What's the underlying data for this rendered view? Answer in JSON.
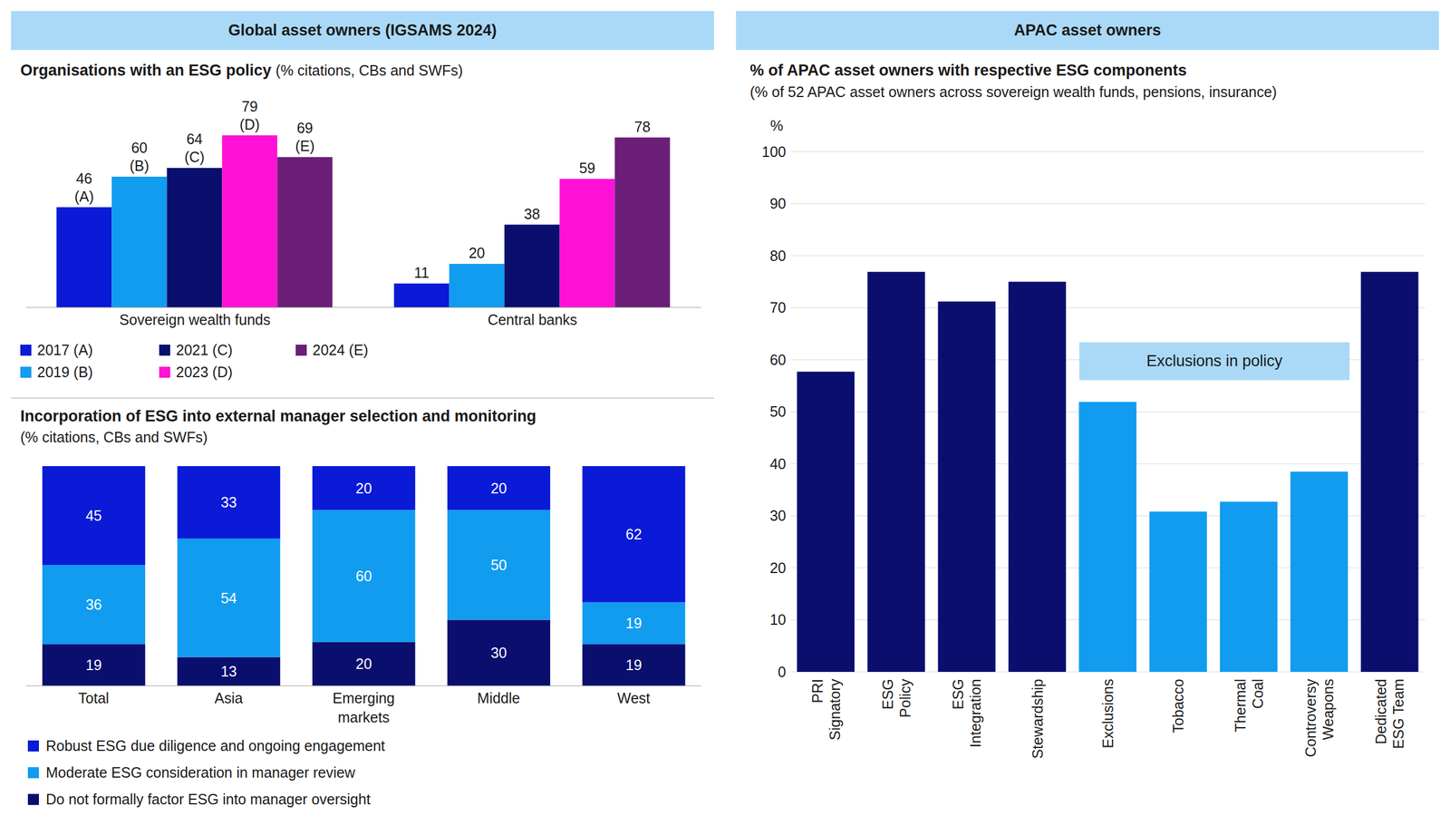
{
  "headers": [
    "Global asset owners (IGSAMS 2024)",
    "APAC asset owners"
  ],
  "chart_data": [
    {
      "type": "bar",
      "title": "Organisations with an ESG policy",
      "subtitle": "(% citations, CBs and SWFs)",
      "categories": [
        "Sovereign wealth funds",
        "Central banks"
      ],
      "series": [
        {
          "name": "2017 (A)",
          "color": "#0a1ad6",
          "values": [
            46,
            11
          ],
          "value_labels": [
            "46\n(A)",
            "11"
          ]
        },
        {
          "name": "2019 (B)",
          "color": "#119cf0",
          "values": [
            60,
            20
          ],
          "value_labels": [
            "60\n(B)",
            "20"
          ]
        },
        {
          "name": "2021 (C)",
          "color": "#0a0f6e",
          "values": [
            64,
            38
          ],
          "value_labels": [
            "64\n(C)",
            "38"
          ]
        },
        {
          "name": "2023 (D)",
          "color": "#ff12d6",
          "values": [
            79,
            59
          ],
          "value_labels": [
            "79\n(D)",
            "59"
          ]
        },
        {
          "name": "2024 (E)",
          "color": "#6b1f78",
          "values": [
            69,
            78
          ],
          "value_labels": [
            "69\n(E)",
            "78"
          ]
        }
      ],
      "ylim": [
        0,
        100
      ],
      "tick_labels": "x",
      "data_labels": true,
      "legend": "bottom"
    },
    {
      "type": "bar",
      "title": "Incorporation of ESG into external manager selection and monitoring",
      "subtitle": "(% citations, CBs and SWFs)",
      "categories": [
        "Total",
        "Asia",
        "Emerging markets",
        "Middle",
        "West"
      ],
      "series": [
        {
          "name": "Robust ESG due diligence and ongoing engagement",
          "color": "#0a1ad6",
          "values": [
            45,
            33,
            20,
            20,
            62
          ]
        },
        {
          "name": "Moderate ESG consideration in manager review",
          "color": "#119cf0",
          "values": [
            36,
            54,
            60,
            50,
            19
          ]
        },
        {
          "name": "Do not formally factor ESG into manager oversight",
          "color": "#0a0f6e",
          "values": [
            19,
            13,
            20,
            30,
            19
          ]
        }
      ],
      "ylim": [
        0,
        100
      ],
      "stacked": true,
      "tick_labels": "x",
      "data_labels": true,
      "legend": "bottom"
    },
    {
      "type": "bar",
      "title": "% of APAC asset owners with respective ESG components",
      "subtitle": "(% of 52 APAC asset owners across sovereign wealth funds, pensions, insurance)",
      "ylabel": "%",
      "annotation": "Exclusions in policy",
      "categories": [
        "PRI Signatory",
        "ESG Policy",
        "ESG Integration",
        "Stewardship",
        "Exclusions",
        "Tobacco",
        "Thermal Coal",
        "Controversy Weapons",
        "Dedicated ESG Team"
      ],
      "values": [
        57.7,
        76.9,
        71.2,
        75,
        51.9,
        30.8,
        32.7,
        38.5,
        76.9
      ],
      "colors": [
        "#0a0f6e",
        "#0a0f6e",
        "#0a0f6e",
        "#0a0f6e",
        "#119cf0",
        "#119cf0",
        "#119cf0",
        "#119cf0",
        "#0a0f6e"
      ],
      "ylim": [
        0,
        100
      ],
      "yticks": [
        0,
        10,
        20,
        30,
        40,
        50,
        60,
        70,
        80,
        90,
        100
      ],
      "grid": true
    }
  ]
}
